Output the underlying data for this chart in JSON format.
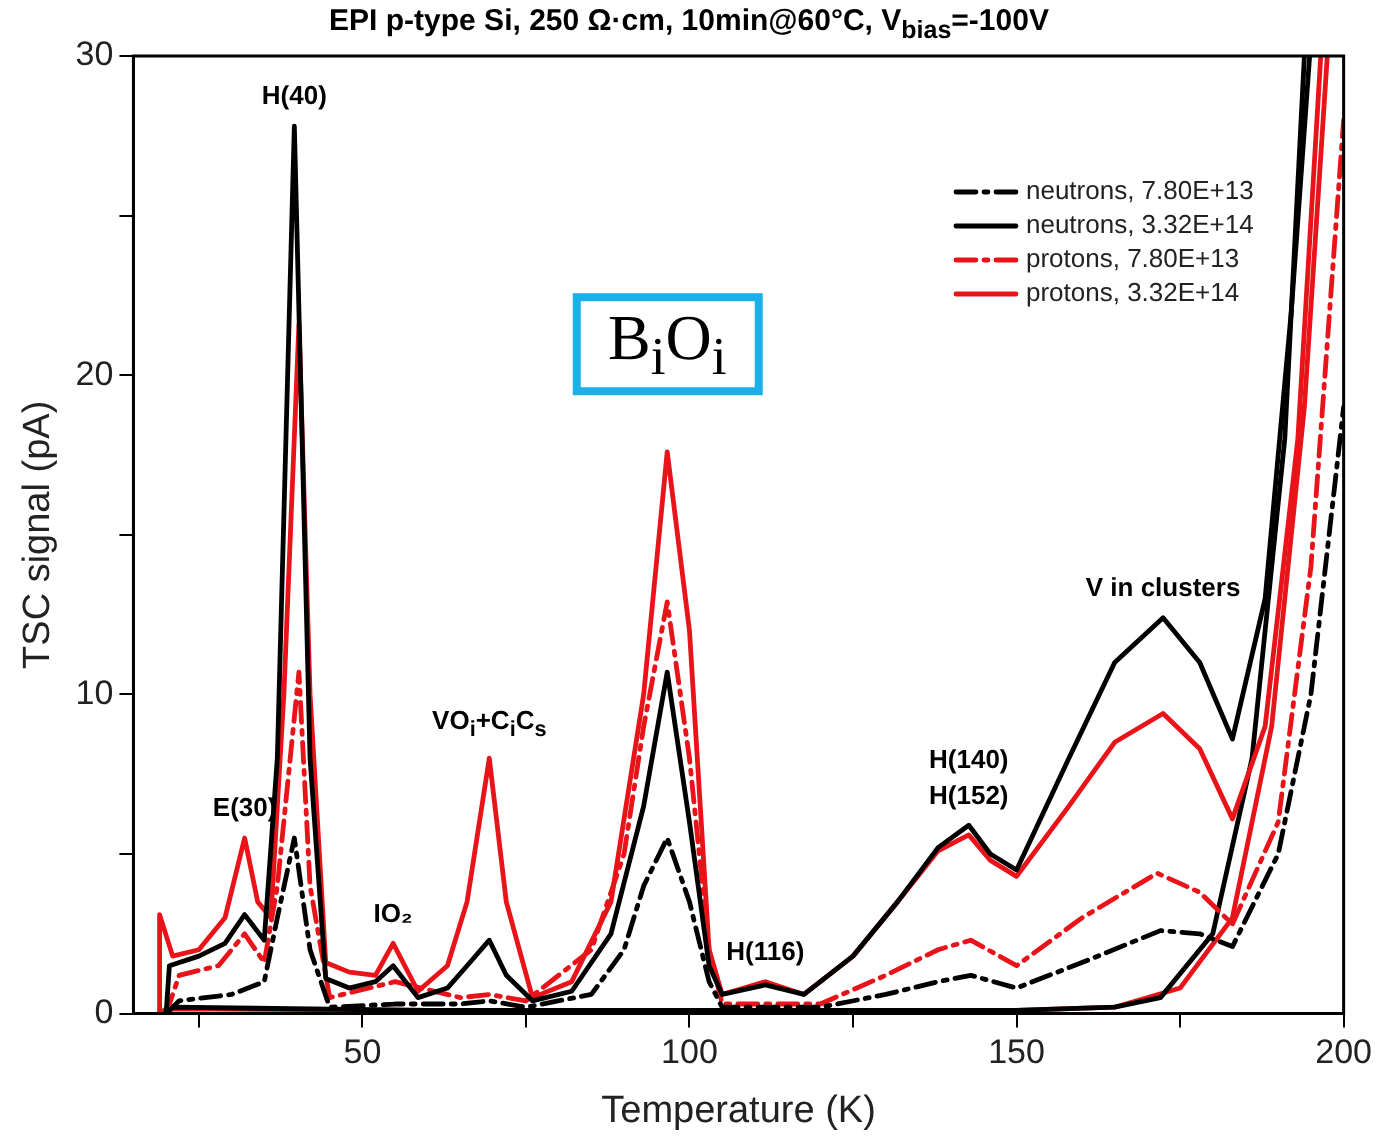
{
  "chart_data": {
    "type": "line",
    "title": "EPI p-type Si, 250 Ω·cm, 10min@60°C, V$_{bias}$=-100V",
    "xlabel": "Temperature (K)",
    "ylabel": "TSC signal (pA)",
    "xlim": [
      15,
      200
    ],
    "xticks": [
      {
        "value": 25,
        "label": null
      },
      50,
      {
        "value": 75,
        "label": null
      },
      100,
      {
        "value": 125,
        "label": null
      },
      150,
      {
        "value": 175,
        "label": null
      },
      200
    ],
    "ylim": [
      0,
      30
    ],
    "yticks": [
      0,
      {
        "value": 5,
        "label": null
      },
      10,
      {
        "value": 15,
        "label": null
      },
      20,
      {
        "value": 25,
        "label": null
      },
      30
    ],
    "grid": false,
    "legend": "top right",
    "marker": "none",
    "series": [
      {
        "name": "neutrons, 7.80E+13",
        "color": "#000000",
        "line_style": "dashed",
        "x": [
          20,
          22,
          30,
          35,
          37,
          39.6,
          42,
          45,
          55,
          65,
          69.4,
          75,
          85,
          90,
          93,
          96.6,
          100,
          103,
          105,
          120,
          130,
          138,
          143,
          150,
          160,
          172,
          178,
          183,
          190,
          195,
          200
        ],
        "values": [
          0,
          0.4,
          0.6,
          1,
          3,
          5.5,
          2,
          0.2,
          0.3,
          0.3,
          0.4,
          0.2,
          0.6,
          2,
          4,
          5.5,
          3.5,
          1,
          0.2,
          0.2,
          0.6,
          1,
          1.2,
          0.8,
          1.6,
          2.6,
          2.5,
          2.1,
          5,
          10,
          19
        ]
      },
      {
        "name": "neutrons, 3.32E+14",
        "color": "#000000",
        "line_style": "solid",
        "x": [
          20,
          20.5,
          25,
          29,
          32,
          35,
          37,
          39.6,
          42,
          44.4,
          48,
          52,
          54.7,
          58.5,
          63,
          66,
          69.4,
          72,
          76,
          82,
          88,
          93,
          96.6,
          100,
          103,
          105,
          111.6,
          117.5,
          125,
          131.8,
          138,
          142.7,
          146,
          150,
          158,
          165,
          172.4,
          178,
          183,
          188,
          192,
          194.8
        ],
        "values": [
          0,
          1.5,
          1.8,
          2.2,
          3.1,
          2.3,
          8,
          27.8,
          8,
          1.1,
          0.8,
          1,
          1.5,
          0.5,
          0.8,
          1.5,
          2.3,
          1.2,
          0.4,
          0.7,
          2.5,
          6.5,
          10.7,
          6,
          1.5,
          0.6,
          0.9,
          0.6,
          1.8,
          3.5,
          5.2,
          5.9,
          5,
          4.5,
          8,
          11,
          12.4,
          11,
          8.6,
          13,
          22,
          30
        ]
      },
      {
        "name": "protons, 7.80E+13",
        "color": "#e8141a",
        "line_style": "dashed",
        "x": [
          20,
          22,
          28,
          32,
          35,
          37,
          40.3,
          42,
          45,
          55,
          65,
          69.4,
          75,
          85,
          90,
          93,
          96.6,
          100,
          103,
          105,
          120,
          130,
          138,
          143,
          150,
          160,
          171.5,
          178,
          183,
          190,
          195,
          200
        ],
        "values": [
          0,
          1.2,
          1.5,
          2.5,
          1.6,
          4,
          10.7,
          4,
          0.5,
          1,
          0.5,
          0.6,
          0.4,
          2,
          5,
          9,
          12.9,
          8,
          2,
          0.3,
          0.3,
          1.2,
          2,
          2.3,
          1.5,
          3,
          4.4,
          3.8,
          2.8,
          6,
          14,
          28
        ]
      },
      {
        "name": "protons, 3.32E+14",
        "color": "#e8141a",
        "line_style": "solid",
        "x": [
          18.8,
          19,
          21,
          25,
          29,
          32,
          34,
          36,
          38,
          40.3,
          42,
          44.4,
          48,
          52,
          54.7,
          58.5,
          63,
          66,
          69.4,
          72,
          76,
          82,
          88,
          93,
          96.6,
          100,
          103,
          105,
          111.6,
          117.5,
          125,
          131.8,
          138,
          142.7,
          146,
          150,
          158,
          165,
          172.4,
          178,
          183,
          188,
          193,
          196.5
        ],
        "values": [
          0,
          3.1,
          1.8,
          2,
          3,
          5.5,
          3.5,
          3,
          10,
          21.6,
          10,
          1.6,
          1.3,
          1.2,
          2.2,
          0.7,
          1.5,
          3.5,
          8,
          3.5,
          0.5,
          1,
          3.5,
          10,
          17.6,
          12,
          2,
          0.6,
          1,
          0.6,
          1.8,
          3.5,
          5.1,
          5.6,
          4.8,
          4.3,
          6.5,
          8.5,
          9.4,
          8.3,
          6.1,
          9,
          18,
          30
        ]
      },
      {
        "color": "#000000",
        "line_style": "solid",
        "x": [
          20,
          21,
          60,
          100,
          150,
          165,
          172,
          180,
          186,
          191,
          194
        ],
        "values": [
          0,
          0.2,
          0.1,
          0.1,
          0.1,
          0.2,
          0.5,
          2.5,
          8,
          18,
          30
        ]
      },
      {
        "color": "#e8141a",
        "line_style": "solid",
        "x": [
          19,
          20,
          60,
          100,
          150,
          165,
          175,
          183,
          189,
          194,
          197.5
        ],
        "values": [
          0,
          0.15,
          0.1,
          0.1,
          0.1,
          0.2,
          0.8,
          3,
          9,
          19,
          30
        ]
      }
    ],
    "annotations": [
      {
        "text": "E(30)",
        "x": 32,
        "y": 5.5
      },
      {
        "text": "H(40)",
        "x": 39.6,
        "y": 27.8
      },
      {
        "text": "IO₂",
        "x": 54.7,
        "y": 2.2
      },
      {
        "text": "VO$_{i}$+C$_{i}$C$_{s}$",
        "x": 69.4,
        "y": 8
      },
      {
        "text": "B$_{i}$O$_{i}$",
        "x": 96.6,
        "y": 17.6
      },
      {
        "text": "H(116)",
        "x": 111.6,
        "y": 1
      },
      {
        "text": "H(140)",
        "x": 142.7,
        "y": 5.9
      },
      {
        "text": "H(152)",
        "x": 142.7,
        "y": 5.9
      },
      {
        "text": "V in clusters",
        "x": 172.4,
        "y": 12.4
      }
    ]
  }
}
